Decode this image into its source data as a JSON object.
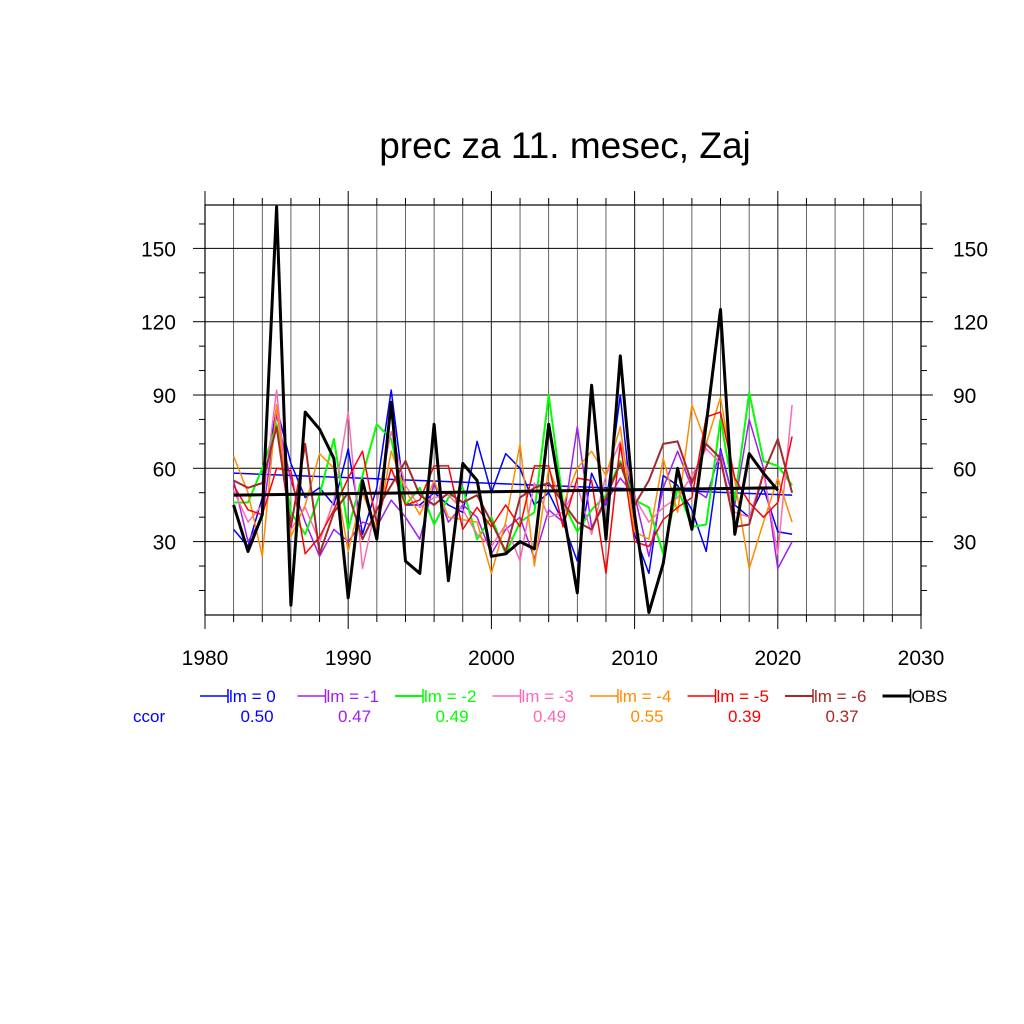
{
  "chart_data": {
    "type": "line",
    "title": "prec za 11. mesec, Zaj",
    "xlim": [
      1980,
      2030
    ],
    "ylim": [
      0,
      170
    ],
    "x_ticks": [
      1980,
      1990,
      2000,
      2010,
      2020,
      2030
    ],
    "y_ticks": [
      30,
      60,
      90,
      120,
      150
    ],
    "grid": true,
    "legend_position": "bottom",
    "ccor_label": "ccor",
    "x": [
      1982,
      1983,
      1984,
      1985,
      1986,
      1987,
      1988,
      1989,
      1990,
      1991,
      1992,
      1993,
      1994,
      1995,
      1996,
      1997,
      1998,
      1999,
      2000,
      2001,
      2002,
      2003,
      2004,
      2005,
      2006,
      2007,
      2008,
      2009,
      2010,
      2011,
      2012,
      2013,
      2014,
      2015,
      2016,
      2017,
      2018,
      2019,
      2020,
      2021
    ],
    "series": [
      {
        "name": "lm = 0",
        "color": "#0000ff",
        "width": 1.5,
        "ccor": "0.50",
        "trend": [
          58,
          49
        ],
        "values": [
          35,
          28,
          48,
          85,
          62,
          48,
          52,
          45,
          68,
          33,
          52,
          92,
          45,
          45,
          50,
          45,
          42,
          71,
          50,
          66,
          60,
          45,
          50,
          38,
          22,
          58,
          45,
          90,
          33,
          17,
          57,
          53,
          43,
          26,
          68,
          45,
          40,
          52,
          34,
          33
        ]
      },
      {
        "name": "lm = -1",
        "color": "#a020f0",
        "width": 1.5,
        "ccor": "0.47",
        "trend": null,
        "values": [
          55,
          30,
          40,
          82,
          55,
          38,
          24,
          35,
          30,
          38,
          36,
          47,
          40,
          31,
          54,
          38,
          45,
          40,
          25,
          35,
          40,
          23,
          43,
          38,
          77,
          36,
          46,
          56,
          49,
          24,
          52,
          67,
          52,
          48,
          67,
          45,
          80,
          60,
          19,
          30
        ]
      },
      {
        "name": "lm = -2",
        "color": "#00ff00",
        "width": 2,
        "ccor": "0.49",
        "trend": null,
        "values": [
          46,
          46,
          60,
          78,
          42,
          33,
          49,
          72,
          35,
          57,
          78,
          72,
          45,
          52,
          37,
          48,
          52,
          31,
          40,
          25,
          38,
          42,
          90,
          46,
          34,
          43,
          49,
          63,
          47,
          44,
          25,
          52,
          36,
          37,
          80,
          47,
          91,
          63,
          61,
          53
        ]
      },
      {
        "name": "lm = -3",
        "color": "#ff69b4",
        "width": 1.5,
        "ccor": "0.49",
        "trend": null,
        "values": [
          51,
          38,
          45,
          92,
          35,
          44,
          30,
          47,
          83,
          19,
          46,
          75,
          53,
          44,
          48,
          49,
          43,
          33,
          28,
          37,
          22,
          54,
          40,
          42,
          53,
          33,
          57,
          71,
          48,
          38,
          44,
          48,
          57,
          68,
          62,
          42,
          40,
          58,
          25,
          86
        ]
      },
      {
        "name": "lm = -4",
        "color": "#ff8c00",
        "width": 1.5,
        "ccor": "0.55",
        "trend": null,
        "values": [
          65,
          50,
          24,
          86,
          32,
          45,
          66,
          60,
          26,
          50,
          35,
          67,
          51,
          41,
          55,
          40,
          39,
          38,
          17,
          38,
          70,
          20,
          60,
          45,
          60,
          67,
          57,
          77,
          34,
          31,
          64,
          42,
          86,
          70,
          89,
          55,
          19,
          38,
          56,
          38
        ]
      },
      {
        "name": "lm = -5",
        "color": "#ff0000",
        "width": 1.5,
        "ccor": "0.39",
        "trend": null,
        "values": [
          53,
          43,
          41,
          60,
          59,
          25,
          32,
          43,
          56,
          67,
          37,
          60,
          45,
          47,
          61,
          61,
          35,
          44,
          36,
          45,
          36,
          61,
          61,
          36,
          56,
          55,
          17,
          70,
          30,
          28,
          39,
          44,
          48,
          81,
          83,
          56,
          46,
          40,
          46,
          73
        ]
      },
      {
        "name": "lm = -6",
        "color": "#a52a2a",
        "width": 2,
        "ccor": "0.37",
        "trend": null,
        "values": [
          55,
          52,
          54,
          77,
          36,
          70,
          25,
          42,
          50,
          31,
          43,
          53,
          63,
          49,
          45,
          50,
          46,
          49,
          38,
          26,
          48,
          52,
          54,
          46,
          38,
          35,
          48,
          62,
          45,
          55,
          70,
          71,
          54,
          70,
          64,
          36,
          37,
          58,
          72,
          50
        ]
      },
      {
        "name": "OBS",
        "color": "#000000",
        "width": 3,
        "ccor": "",
        "trend": [
          49,
          52
        ],
        "values": [
          45,
          26,
          41,
          167,
          4,
          83,
          76,
          64,
          7,
          55,
          31,
          87,
          22,
          17,
          78,
          14,
          62,
          55,
          24,
          25,
          30,
          27,
          78,
          43,
          9,
          94,
          31,
          106,
          41,
          1,
          21,
          60,
          35,
          78,
          125,
          33,
          66,
          58,
          51,
          null
        ]
      }
    ]
  }
}
